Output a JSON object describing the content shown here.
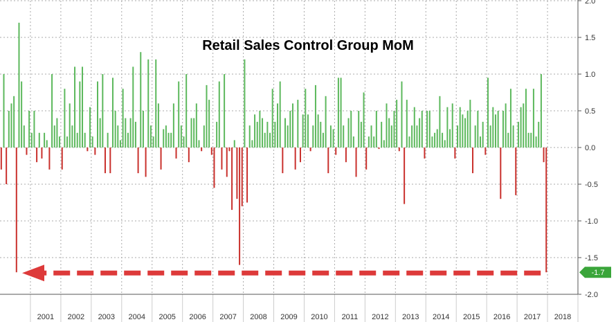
{
  "chart_data": {
    "type": "bar",
    "title": "Retail Sales Control Group MoM",
    "xlabel": "",
    "ylabel": "",
    "ylim": [
      -2.0,
      2.0
    ],
    "grid": true,
    "y_ticks": [
      "2.0",
      "1.5",
      "1.0",
      "0.5",
      "0.0",
      "-0.5",
      "-1.0",
      "-1.5",
      "-2.0"
    ],
    "x_ticks": [
      "2001",
      "2002",
      "2003",
      "2004",
      "2005",
      "2006",
      "2007",
      "2008",
      "2009",
      "2010",
      "2011",
      "2012",
      "2013",
      "2014",
      "2015",
      "2016",
      "2017",
      "2018"
    ],
    "latest_value_label": "-1.7",
    "start": "2000-01",
    "values": [
      -0.3,
      1.0,
      -0.5,
      0.5,
      0.6,
      0.7,
      -1.7,
      1.7,
      0.9,
      0.3,
      -0.1,
      0.5,
      0.2,
      0.5,
      -0.2,
      0.2,
      -0.15,
      0.2,
      0.1,
      -0.3,
      1.0,
      0.3,
      0.4,
      0.15,
      -0.3,
      0.8,
      0.15,
      0.6,
      0.3,
      1.1,
      0.2,
      0.9,
      1.1,
      0.2,
      -0.05,
      0.55,
      0.15,
      -0.1,
      0.9,
      0.4,
      1.0,
      -0.35,
      0.2,
      -0.35,
      0.95,
      0.5,
      0.3,
      0.1,
      0.8,
      0.4,
      0.2,
      0.4,
      1.1,
      0.35,
      -0.35,
      1.3,
      0.5,
      -0.4,
      1.2,
      0.3,
      0.15,
      1.2,
      0.6,
      -0.3,
      0.25,
      0.3,
      0.2,
      0.2,
      0.6,
      -0.15,
      0.9,
      0.3,
      0.15,
      1.0,
      -0.2,
      0.4,
      0.4,
      0.6,
      0.1,
      -0.05,
      0.3,
      0.85,
      0.65,
      -0.1,
      -0.55,
      0.35,
      0.9,
      -0.3,
      1.0,
      -0.4,
      -0.05,
      -0.85,
      0.1,
      -0.7,
      -1.6,
      -0.8,
      1.2,
      -0.75,
      0.3,
      0.1,
      0.45,
      0.35,
      0.5,
      0.4,
      0.2,
      0.35,
      0.2,
      0.8,
      0.35,
      0.6,
      0.9,
      -0.35,
      0.4,
      0.3,
      0.5,
      0.6,
      -0.3,
      0.65,
      -0.2,
      0.45,
      0.8,
      0.45,
      -0.05,
      0.3,
      0.85,
      0.45,
      0.35,
      0.2,
      0.7,
      -0.35,
      0.3,
      0.25,
      -0.1,
      0.95,
      0.95,
      0.3,
      -0.2,
      0.4,
      0.5,
      0.15,
      -0.4,
      0.5,
      0.35,
      0.75,
      -0.3,
      0.15,
      0.3,
      0.15,
      0.5,
      -0.02,
      0.35,
      0.1,
      0.6,
      0.4,
      0.3,
      0.5,
      0.65,
      -0.05,
      0.9,
      -0.77,
      0.65,
      0.15,
      0.3,
      0.55,
      0.3,
      0.4,
      0.5,
      -0.15,
      0.5,
      0.5,
      0.15,
      0.2,
      0.25,
      0.7,
      0.2,
      0.1,
      0.55,
      0.25,
      0.6,
      -0.15,
      0.3,
      0.55,
      0.45,
      0.4,
      0.5,
      0.65,
      -0.35,
      0.3,
      0.5,
      0.15,
      0.35,
      -0.1,
      0.95,
      0.3,
      0.55,
      0.45,
      0.5,
      -0.7,
      0.5,
      0.6,
      0.2,
      0.8,
      0.3,
      -0.65,
      0.35,
      0.55,
      0.6,
      0.8,
      0.2,
      0.2,
      0.8,
      0.15,
      0.35,
      1.0,
      -0.2,
      -1.7
    ],
    "colors": {
      "positive": "#5cb85c",
      "negative": "#c9302c",
      "highlight": "#dd3a3a",
      "label_bg": "#3aa53a",
      "grid": "#aaaaaa",
      "axis": "#555555"
    }
  }
}
